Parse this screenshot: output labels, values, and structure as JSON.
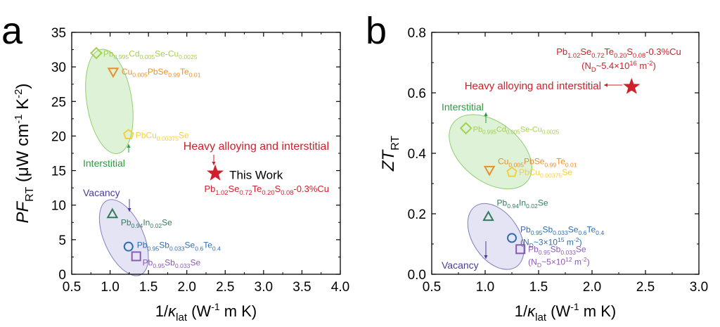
{
  "chart_data": [
    {
      "type": "scatter",
      "panel_label": "a",
      "title": "",
      "xlabel": "1/κlat (W⁻¹ m K)",
      "ylabel": "PF_RT (μW cm⁻¹ K⁻²)",
      "xlim": [
        0.5,
        4.0
      ],
      "ylim": [
        0,
        35
      ],
      "xticks": [
        "0.5",
        "1.0",
        "1.5",
        "2.0",
        "2.5",
        "3.0",
        "3.5",
        "4.0"
      ],
      "yticks": [
        "0",
        "5",
        "10",
        "15",
        "20",
        "25",
        "30",
        "35"
      ],
      "points": [
        {
          "name": "Pb0.995Cd0.005Se-Cu0.0025",
          "x": 0.82,
          "y": 32.0,
          "marker": "diamond",
          "color": "#a6cf52",
          "label_lines": [
            [
              "Pb",
              "0.995",
              "Cd",
              "0.005",
              "Se-Cu",
              "0.0025"
            ]
          ]
        },
        {
          "name": "Cu0.005PbSe0.99Te0.01",
          "x": 1.04,
          "y": 29.3,
          "marker": "triangle-down",
          "color": "#e8902b",
          "label_lines": [
            [
              "Cu",
              "0.005",
              "PbSe",
              "0.99",
              "Te",
              "0.01"
            ]
          ]
        },
        {
          "name": "PbCu0.00375Se",
          "x": 1.24,
          "y": 20.2,
          "marker": "pentagon",
          "color": "#f5cf3a",
          "label_lines": [
            [
              "PbCu",
              "0.00375",
              "Se"
            ]
          ]
        },
        {
          "name": "Pb0.94In0.02Se",
          "x": 1.03,
          "y": 8.7,
          "marker": "triangle-up",
          "color": "#2f7d5a",
          "label_lines": [
            [
              "Pb",
              "0.94",
              "In",
              "0.02",
              "Se"
            ]
          ]
        },
        {
          "name": "Pb0.95Sb0.033Se0.6Te0.4",
          "x": 1.24,
          "y": 4.0,
          "marker": "circle",
          "color": "#2e6db3",
          "label_lines": [
            [
              "Pb",
              "0.95",
              "Sb",
              "0.033",
              "Se",
              "0.6",
              "Te",
              "0.4"
            ]
          ]
        },
        {
          "name": "Pb0.95Sb0.033Se",
          "x": 1.34,
          "y": 2.6,
          "marker": "square",
          "color": "#8a5ab5",
          "label_lines": [
            [
              "Pb",
              "0.95",
              "Sb",
              "0.033",
              "Se"
            ]
          ]
        },
        {
          "name": "This Work",
          "x": 2.37,
          "y": 14.6,
          "marker": "star",
          "color": "#d0202b",
          "label_lines": [
            [
              "This Work"
            ]
          ]
        }
      ],
      "annotations": {
        "interstitial": "Interstitial",
        "vacancy": "Vacancy",
        "heavy": "Heavy alloying and interstitial",
        "this_work_formula": [
          [
            "Pb",
            "1.02",
            "Se",
            "0.72",
            "Te",
            "0.20",
            "S",
            "0.08",
            "-0.3%Cu"
          ]
        ]
      }
    },
    {
      "type": "scatter",
      "panel_label": "b",
      "title": "",
      "xlabel": "1/κlat (W⁻¹ m K)",
      "ylabel": "ZT_RT",
      "xlim": [
        0.5,
        3.0
      ],
      "ylim": [
        0.0,
        0.8
      ],
      "xticks": [
        "0.5",
        "1.0",
        "1.5",
        "2.0",
        "2.5",
        "3.0"
      ],
      "yticks": [
        "0.0",
        "0.2",
        "0.4",
        "0.6",
        "0.8"
      ],
      "points": [
        {
          "name": "Pb0.995Cd0.005Se-Cu0.0025",
          "x": 0.82,
          "y": 0.483,
          "marker": "diamond",
          "color": "#a6cf52",
          "label_lines": [
            [
              "Pb",
              "0.995",
              "Cd",
              "0.005",
              "Se-Cu",
              "0.0025"
            ]
          ]
        },
        {
          "name": "Cu0.005PbSe0.99Te0.01",
          "x": 1.04,
          "y": 0.345,
          "marker": "triangle-down",
          "color": "#e8902b",
          "label_lines": [
            [
              "Cu",
              "0.005",
              "PbSe",
              "0.99",
              "Te",
              "0.01"
            ]
          ]
        },
        {
          "name": "PbCu0.00375Se",
          "x": 1.25,
          "y": 0.337,
          "marker": "pentagon",
          "color": "#f5cf3a",
          "label_lines": [
            [
              "PbCu",
              "0.00375",
              "Se"
            ]
          ]
        },
        {
          "name": "Pb0.94In0.02Se",
          "x": 1.03,
          "y": 0.19,
          "marker": "triangle-up",
          "color": "#2f7d5a",
          "label_lines": [
            [
              "Pb",
              "0.94",
              "In",
              "0.02",
              "Se"
            ]
          ]
        },
        {
          "name": "Pb0.95Sb0.033Se0.6Te0.4",
          "x": 1.25,
          "y": 0.12,
          "marker": "circle",
          "color": "#2e6db3",
          "label_lines": [
            [
              "Pb",
              "0.95",
              "Sb",
              "0.033",
              "Se",
              "0.6",
              "Te",
              "0.4"
            ],
            [
              "(N",
              "D",
              "~3×10",
              "15",
              " m",
              "-2",
              ")"
            ]
          ]
        },
        {
          "name": "Pb0.95Sb0.033Se",
          "x": 1.33,
          "y": 0.083,
          "marker": "square",
          "color": "#8a5ab5",
          "label_lines": [
            [
              "Pb",
              "0.95",
              "Sb",
              "0.033",
              "Se"
            ],
            [
              "(N",
              "D",
              "~5×10",
              "12",
              " m",
              "-2",
              ")"
            ]
          ]
        },
        {
          "name": "This Work",
          "x": 2.37,
          "y": 0.62,
          "marker": "star",
          "color": "#d0202b",
          "label_lines": []
        }
      ],
      "annotations": {
        "interstitial": "Interstitial",
        "vacancy": "Vacancy",
        "heavy": "Heavy alloying and interstitial",
        "this_work_formula": [
          [
            "Pb",
            "1.02",
            "Se",
            "0.72",
            "Te",
            "0.20",
            "S",
            "0.08",
            "-0.3%Cu"
          ],
          [
            "(N",
            "D",
            "~5.4×10",
            "16",
            " m",
            "-2",
            ")"
          ]
        ]
      }
    }
  ]
}
